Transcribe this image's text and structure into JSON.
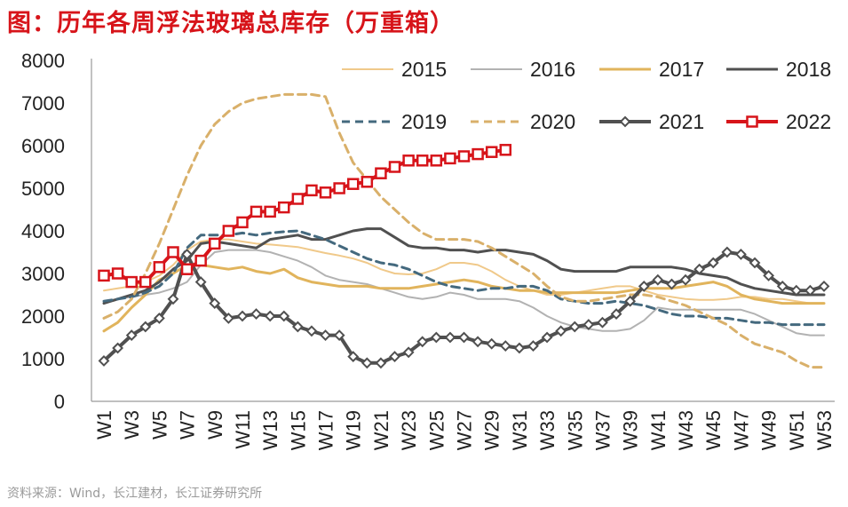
{
  "title": "图：历年各周浮法玻璃总库存（万重箱）",
  "source": "资料来源：Wind，长江建材，长江证券研究所",
  "chart_data": {
    "type": "line",
    "title": "历年各周浮法玻璃总库存（万重箱）",
    "xlabel": "",
    "ylabel": "",
    "ylim": [
      0,
      8000
    ],
    "yticks": [
      "0",
      "1000",
      "2000",
      "3000",
      "4000",
      "5000",
      "6000",
      "7000",
      "8000"
    ],
    "x_tick_labels": [
      "W1",
      "W3",
      "W5",
      "W7",
      "W9",
      "W11",
      "W13",
      "W15",
      "W17",
      "W19",
      "W21",
      "W23",
      "W25",
      "W27",
      "W29",
      "W31",
      "W33",
      "W35",
      "W37",
      "W39",
      "W41",
      "W43",
      "W45",
      "W47",
      "W49",
      "W51",
      "W53"
    ],
    "legend_position": "top-right",
    "series": [
      {
        "name": "2015",
        "color": "#f0c98a",
        "width": 2,
        "dash": "",
        "marker": "none",
        "values": [
          2600,
          2650,
          2700,
          2800,
          2950,
          3200,
          3550,
          3750,
          3800,
          3800,
          3750,
          3700,
          3680,
          3650,
          3620,
          3550,
          3480,
          3420,
          3350,
          3250,
          3100,
          3000,
          2980,
          3000,
          3100,
          3250,
          3250,
          3200,
          3050,
          2850,
          2700,
          2600,
          2500,
          2500,
          2550,
          2600,
          2650,
          2700,
          2700,
          2600,
          2500,
          2450,
          2400,
          2380,
          2380,
          2400,
          2450,
          2450,
          2400,
          2400,
          2350,
          2300,
          2300
        ]
      },
      {
        "name": "2016",
        "color": "#b2b2b2",
        "width": 2,
        "dash": "",
        "marker": "none",
        "values": [
          2350,
          2400,
          2450,
          2500,
          2550,
          2650,
          2800,
          3200,
          3500,
          3550,
          3550,
          3550,
          3500,
          3400,
          3300,
          3150,
          2950,
          2850,
          2800,
          2750,
          2650,
          2550,
          2450,
          2400,
          2450,
          2550,
          2500,
          2400,
          2400,
          2400,
          2350,
          2200,
          2000,
          1850,
          1750,
          1700,
          1650,
          1650,
          1700,
          1900,
          2200,
          2150,
          2150,
          2150,
          2150,
          2150,
          2150,
          2050,
          1900,
          1750,
          1600,
          1550,
          1550
        ]
      },
      {
        "name": "2017",
        "color": "#e1b45c",
        "width": 3,
        "dash": "",
        "marker": "none",
        "values": [
          1650,
          1850,
          2200,
          2500,
          2850,
          3000,
          3200,
          3200,
          3150,
          3100,
          3150,
          3050,
          3000,
          3100,
          2900,
          2800,
          2750,
          2700,
          2700,
          2700,
          2650,
          2650,
          2650,
          2700,
          2750,
          2800,
          2850,
          2800,
          2700,
          2650,
          2600,
          2600,
          2550,
          2550,
          2550,
          2550,
          2550,
          2550,
          2600,
          2650,
          2650,
          2650,
          2700,
          2750,
          2800,
          2700,
          2500,
          2400,
          2350,
          2300,
          2300,
          2300,
          2300
        ]
      },
      {
        "name": "2018",
        "color": "#505050",
        "width": 3,
        "dash": "",
        "marker": "none",
        "values": [
          2300,
          2400,
          2500,
          2600,
          2800,
          3100,
          3300,
          3700,
          3750,
          3700,
          3650,
          3600,
          3800,
          3850,
          3900,
          3800,
          3800,
          3900,
          4000,
          4050,
          4050,
          3850,
          3650,
          3600,
          3600,
          3550,
          3550,
          3500,
          3550,
          3550,
          3500,
          3450,
          3300,
          3100,
          3050,
          3050,
          3050,
          3050,
          3150,
          3150,
          3150,
          3150,
          3100,
          3000,
          2950,
          2900,
          2750,
          2650,
          2600,
          2550,
          2500,
          2500,
          2500
        ]
      },
      {
        "name": "2019",
        "color": "#44697e",
        "width": 3,
        "dash": "9,6",
        "marker": "none",
        "values": [
          2350,
          2400,
          2450,
          2550,
          2700,
          3000,
          3600,
          3900,
          3900,
          3900,
          3950,
          3900,
          3950,
          3980,
          4000,
          3900,
          3800,
          3650,
          3500,
          3350,
          3250,
          3200,
          3100,
          2950,
          2800,
          2700,
          2650,
          2600,
          2650,
          2650,
          2700,
          2700,
          2600,
          2400,
          2350,
          2300,
          2300,
          2350,
          2300,
          2250,
          2150,
          2050,
          2000,
          2000,
          1950,
          1950,
          1900,
          1850,
          1850,
          1800,
          1800,
          1800,
          1800
        ]
      },
      {
        "name": "2020",
        "color": "#d9b06a",
        "width": 3,
        "dash": "9,6",
        "marker": "none",
        "values": [
          1950,
          2100,
          2400,
          3000,
          3700,
          4500,
          5300,
          6000,
          6500,
          6800,
          7000,
          7100,
          7150,
          7200,
          7200,
          7200,
          7150,
          6300,
          5600,
          5200,
          4800,
          4500,
          4200,
          3950,
          3800,
          3800,
          3800,
          3750,
          3600,
          3400,
          3200,
          3000,
          2700,
          2450,
          2350,
          2350,
          2400,
          2450,
          2500,
          2500,
          2450,
          2350,
          2250,
          2100,
          1950,
          1800,
          1550,
          1350,
          1250,
          1150,
          950,
          800,
          800
        ]
      },
      {
        "name": "2021",
        "color": "#505050",
        "width": 4,
        "dash": "",
        "marker": "diamond",
        "values": [
          950,
          1250,
          1550,
          1750,
          1950,
          2400,
          3450,
          2800,
          2300,
          1950,
          2000,
          2050,
          2000,
          2000,
          1750,
          1650,
          1550,
          1550,
          1050,
          900,
          900,
          1050,
          1150,
          1400,
          1500,
          1500,
          1500,
          1400,
          1350,
          1300,
          1250,
          1300,
          1500,
          1650,
          1750,
          1800,
          1850,
          2050,
          2350,
          2700,
          2850,
          2750,
          2850,
          3100,
          3250,
          3500,
          3450,
          3250,
          2950,
          2700,
          2600,
          2600,
          2700
        ]
      },
      {
        "name": "2022",
        "color": "#d7141a",
        "width": 4,
        "dash": "",
        "marker": "square",
        "values": [
          2950,
          3000,
          2800,
          2800,
          3150,
          3500,
          3100,
          3300,
          3700,
          4000,
          4200,
          4450,
          4450,
          4550,
          4750,
          4950,
          4900,
          5000,
          5100,
          5150,
          5350,
          5500,
          5650,
          5650,
          5650,
          5700,
          5750,
          5800,
          5850,
          5900
        ]
      }
    ]
  }
}
